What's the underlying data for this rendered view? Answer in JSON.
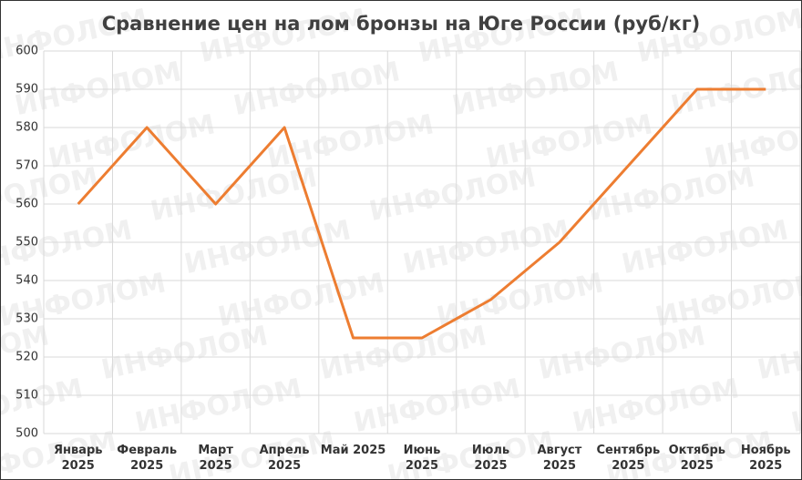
{
  "chart_data": {
    "type": "line",
    "title": "Сравнение цен на лом бронзы на Юге России (руб/кг)",
    "watermark": "ИНФОЛОМ",
    "categories": [
      "Январь\n2025",
      "Февраль\n2025",
      "Март\n2025",
      "Апрель\n2025",
      "Май 2025",
      "Июнь\n2025",
      "Июль\n2025",
      "Август\n2025",
      "Сентябрь\n2025",
      "Октябрь\n2025",
      "Ноябрь\n2025"
    ],
    "values": [
      560,
      580,
      560,
      580,
      525,
      525,
      535,
      550,
      570,
      590,
      590
    ],
    "color": "#ed7d31",
    "ylim": [
      500,
      600
    ],
    "yticks": [
      500,
      510,
      520,
      530,
      540,
      550,
      560,
      570,
      580,
      590,
      600
    ],
    "grid": true
  }
}
